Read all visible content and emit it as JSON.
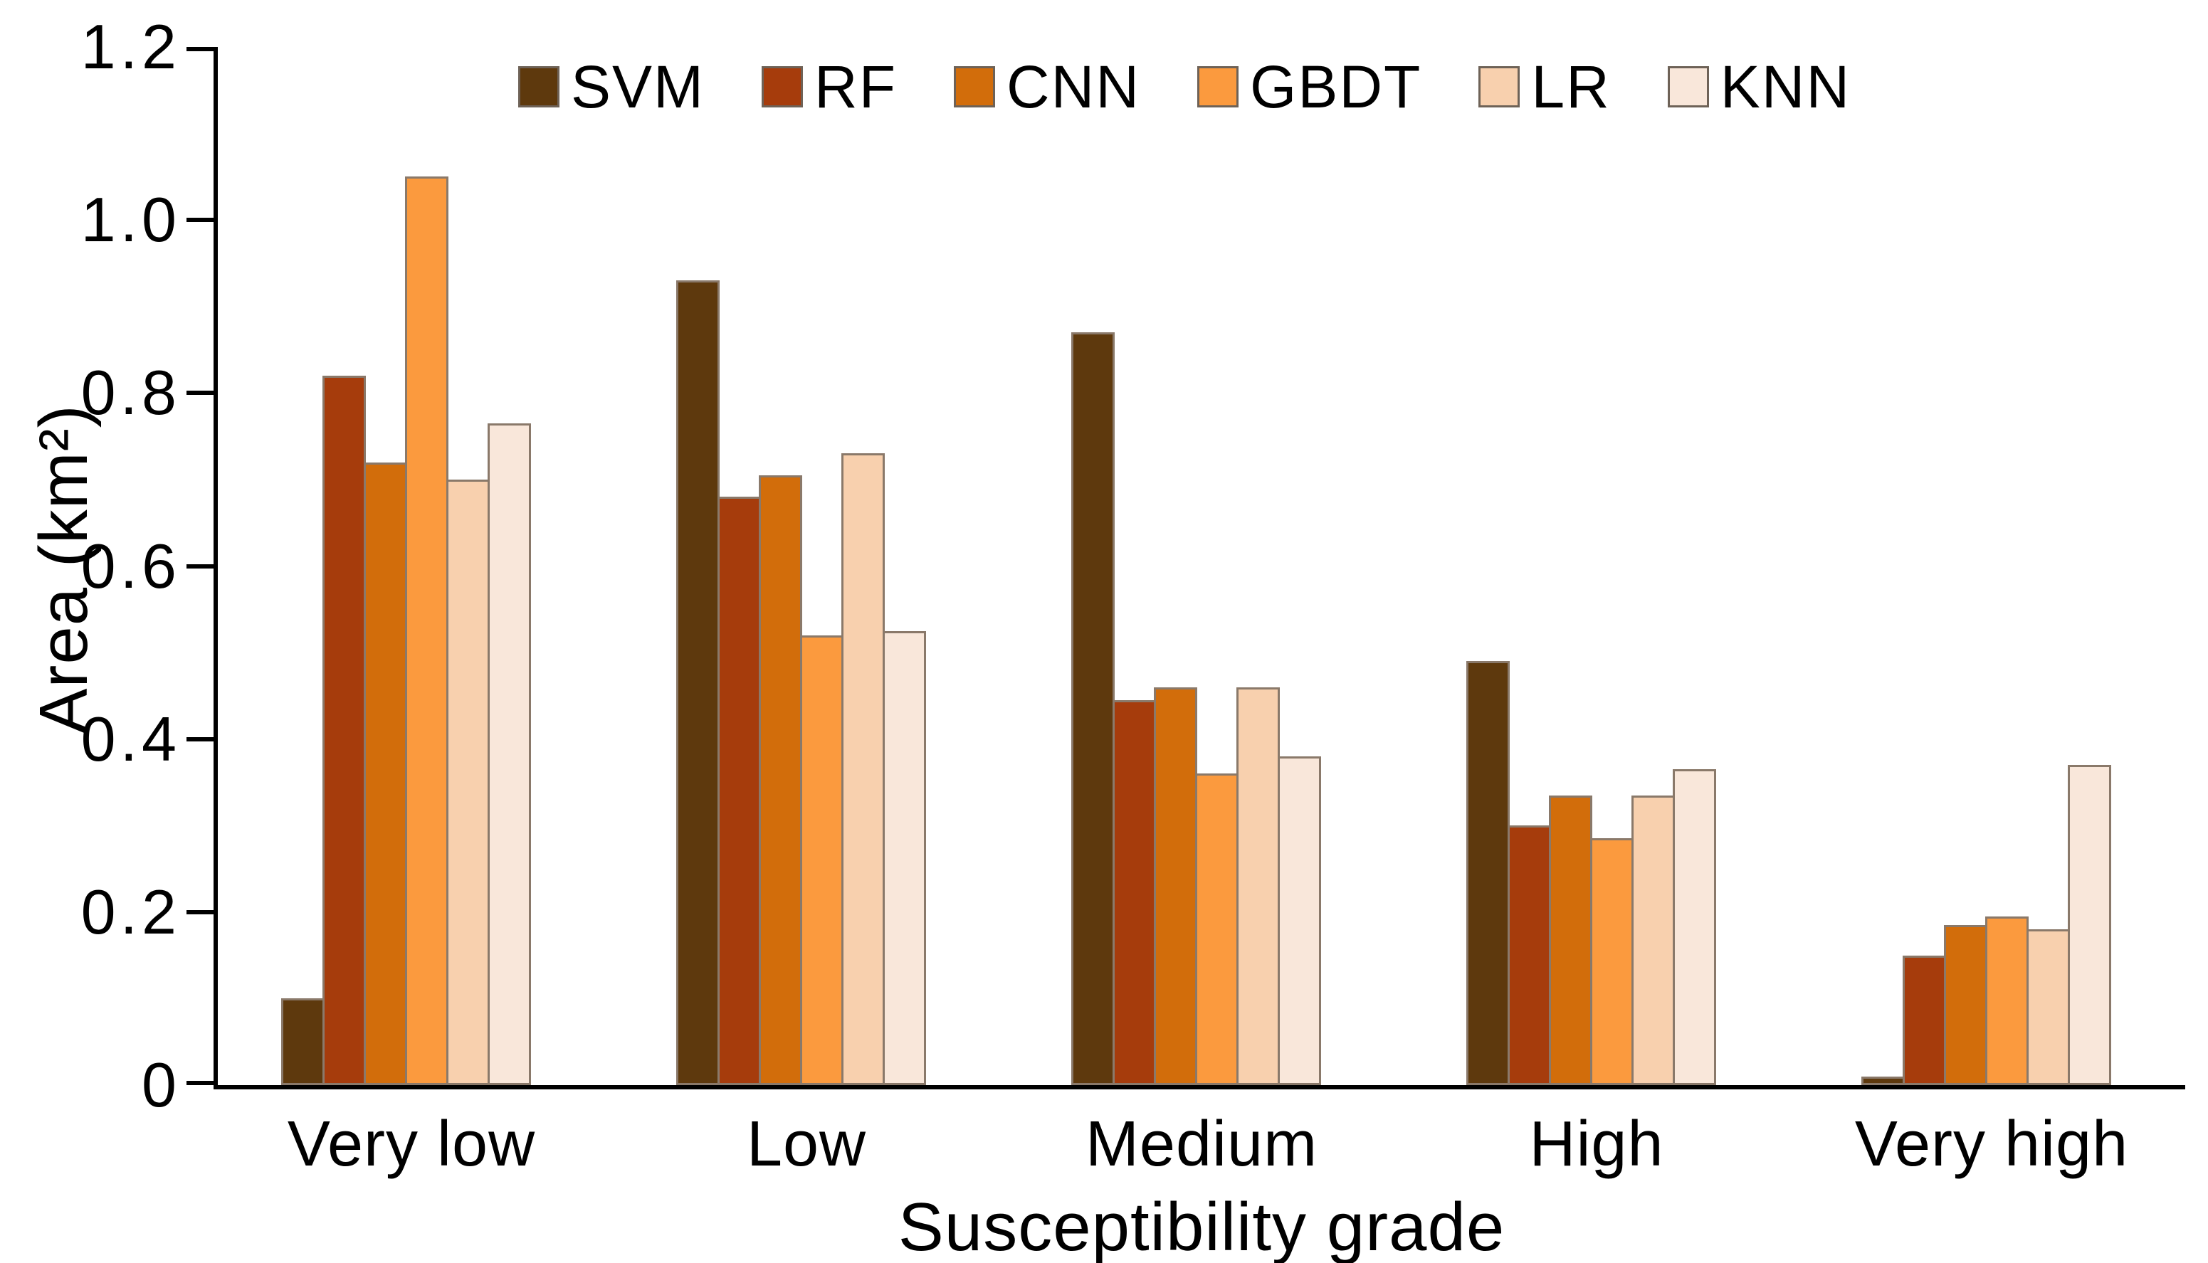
{
  "chart_data": {
    "type": "bar",
    "title": "",
    "xlabel": "Susceptibility grade",
    "ylabel": "Area (km²)",
    "ylim": [
      0,
      1.2
    ],
    "ytick_values": [
      0,
      0.2,
      0.4,
      0.6,
      0.8,
      1.0,
      1.2
    ],
    "ytick_labels": [
      "0",
      "0.2",
      "0.4",
      "0.6",
      "0.8",
      "1.0",
      "1.2"
    ],
    "categories": [
      "Very low",
      "Low",
      "Medium",
      "High",
      "Very high"
    ],
    "series": [
      {
        "name": "SVM",
        "color": "#5e390d",
        "values": [
          0.1,
          0.93,
          0.87,
          0.49,
          0.01
        ]
      },
      {
        "name": "RF",
        "color": "#a63c0c",
        "values": [
          0.82,
          0.68,
          0.445,
          0.3,
          0.15
        ]
      },
      {
        "name": "CNN",
        "color": "#d26d0b",
        "values": [
          0.72,
          0.705,
          0.46,
          0.335,
          0.185
        ]
      },
      {
        "name": "GBDT",
        "color": "#fb9a3e",
        "values": [
          1.05,
          0.52,
          0.36,
          0.285,
          0.195
        ]
      },
      {
        "name": "LR",
        "color": "#f8d0ae",
        "values": [
          0.7,
          0.73,
          0.46,
          0.335,
          0.18
        ]
      },
      {
        "name": "KNN",
        "color": "#f9e7da",
        "values": [
          0.765,
          0.525,
          0.38,
          0.365,
          0.37
        ]
      }
    ],
    "legend_position": "top",
    "grid": false
  }
}
